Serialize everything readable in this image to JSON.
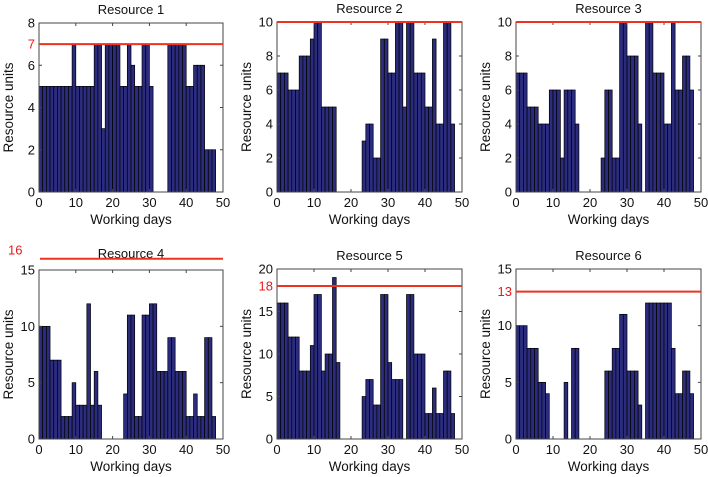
{
  "chart_data": [
    {
      "type": "bar",
      "title": "Resource 1",
      "xlabel": "Working days",
      "ylabel": "Resource units",
      "xlim": [
        0,
        50
      ],
      "ylim": [
        0,
        8
      ],
      "xticks": [
        0,
        10,
        20,
        30,
        40,
        50
      ],
      "yticks": [
        0,
        2,
        4,
        6,
        8
      ],
      "capacity": 7,
      "capacity_label": "7",
      "capacity_label_on_axis": true,
      "grid": false,
      "values": [
        5,
        5,
        5,
        5,
        5,
        5,
        5,
        5,
        5,
        7,
        5,
        5,
        5,
        5,
        5,
        7,
        7,
        3,
        7,
        7,
        7,
        7,
        5,
        5,
        7,
        6,
        5,
        5,
        7,
        7,
        5,
        0,
        0,
        0,
        0,
        7,
        7,
        7,
        7,
        7,
        5,
        5,
        6,
        6,
        6,
        2,
        2,
        2
      ]
    },
    {
      "type": "bar",
      "title": "Resource 2",
      "xlabel": "Working days",
      "ylabel": "Resource units",
      "xlim": [
        0,
        50
      ],
      "ylim": [
        0,
        10
      ],
      "xticks": [
        0,
        10,
        20,
        30,
        40,
        50
      ],
      "yticks": [
        0,
        2,
        4,
        6,
        8,
        10
      ],
      "capacity": 10,
      "capacity_label": "",
      "capacity_label_on_axis": false,
      "grid": false,
      "values": [
        7,
        7,
        7,
        6,
        6,
        6,
        8,
        8,
        8,
        9,
        10,
        10,
        5,
        5,
        5,
        5,
        0,
        0,
        0,
        0,
        0,
        0,
        0,
        3,
        4,
        4,
        2,
        2,
        9,
        9,
        7,
        7,
        10,
        10,
        5,
        10,
        10,
        7,
        7,
        7,
        5,
        5,
        9,
        4,
        4,
        10,
        10,
        4
      ]
    },
    {
      "type": "bar",
      "title": "Resource 3",
      "xlabel": "Working days",
      "ylabel": "Resource units",
      "xlim": [
        0,
        50
      ],
      "ylim": [
        0,
        10
      ],
      "xticks": [
        0,
        10,
        20,
        30,
        40,
        50
      ],
      "yticks": [
        0,
        2,
        4,
        6,
        8,
        10
      ],
      "capacity": 10,
      "capacity_label": "",
      "capacity_label_on_axis": false,
      "grid": false,
      "values": [
        7,
        7,
        7,
        5,
        5,
        5,
        4,
        4,
        4,
        6,
        6,
        6,
        2,
        6,
        6,
        6,
        4,
        0,
        0,
        0,
        0,
        0,
        0,
        2,
        6,
        6,
        2,
        2,
        10,
        10,
        8,
        8,
        8,
        4,
        0,
        10,
        10,
        7,
        7,
        7,
        4,
        4,
        10,
        6,
        6,
        8,
        8,
        6
      ]
    },
    {
      "type": "bar",
      "title": "Resource 4",
      "xlabel": "Working days",
      "ylabel": "Resource units",
      "xlim": [
        0,
        50
      ],
      "ylim": [
        0,
        15
      ],
      "xticks": [
        0,
        10,
        20,
        30,
        40,
        50
      ],
      "yticks": [
        0,
        5,
        10,
        15
      ],
      "capacity": 16,
      "capacity_label": "16",
      "capacity_label_on_axis": true,
      "grid": false,
      "values": [
        10,
        10,
        10,
        7,
        7,
        7,
        2,
        2,
        2,
        5,
        3,
        3,
        3,
        12,
        3,
        6,
        3,
        0,
        0,
        0,
        0,
        0,
        0,
        4,
        11,
        11,
        2,
        2,
        11,
        11,
        12,
        12,
        6,
        6,
        6,
        9,
        9,
        6,
        6,
        6,
        2,
        2,
        4,
        2,
        2,
        9,
        9,
        2
      ]
    },
    {
      "type": "bar",
      "title": "Resource 5",
      "xlabel": "Working days",
      "ylabel": "Resource units",
      "xlim": [
        0,
        50
      ],
      "ylim": [
        0,
        20
      ],
      "xticks": [
        0,
        10,
        20,
        30,
        40,
        50
      ],
      "yticks": [
        0,
        5,
        10,
        15,
        20
      ],
      "capacity": 18,
      "capacity_label": "18",
      "capacity_label_on_axis": true,
      "grid": false,
      "values": [
        16,
        16,
        16,
        12,
        12,
        12,
        8,
        8,
        8,
        11,
        17,
        17,
        8,
        10,
        10,
        19,
        9,
        0,
        0,
        0,
        0,
        0,
        0,
        5,
        7,
        7,
        4,
        4,
        17,
        17,
        9,
        7,
        7,
        7,
        0,
        17,
        17,
        10,
        10,
        10,
        3,
        3,
        6,
        3,
        3,
        8,
        8,
        3
      ]
    },
    {
      "type": "bar",
      "title": "Resource 6",
      "xlabel": "Working days",
      "ylabel": "Resource units",
      "xlim": [
        0,
        50
      ],
      "ylim": [
        0,
        15
      ],
      "xticks": [
        0,
        10,
        20,
        30,
        40,
        50
      ],
      "yticks": [
        0,
        5,
        10,
        15
      ],
      "capacity": 13,
      "capacity_label": "13",
      "capacity_label_on_axis": true,
      "grid": false,
      "values": [
        10,
        10,
        10,
        8,
        8,
        8,
        5,
        5,
        4,
        0,
        0,
        0,
        0,
        5,
        0,
        8,
        8,
        0,
        0,
        0,
        0,
        0,
        0,
        0,
        6,
        6,
        8,
        8,
        11,
        11,
        6,
        6,
        6,
        3,
        0,
        12,
        12,
        12,
        12,
        12,
        12,
        12,
        8,
        4,
        4,
        6,
        6,
        4
      ]
    }
  ],
  "colors": {
    "bar_fill": "#2b2c7e",
    "bar_edge": "#000000",
    "capacity_line": "#ee3322",
    "capacity_text": "#e8191b"
  }
}
